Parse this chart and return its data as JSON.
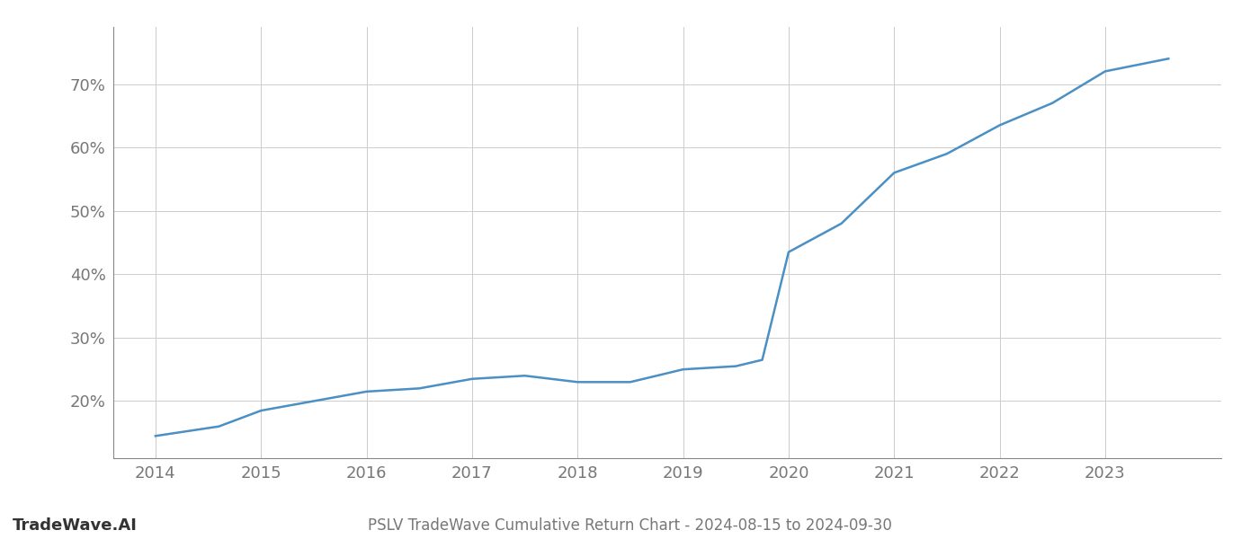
{
  "x_years": [
    2014,
    2014.6,
    2015,
    2015.5,
    2016,
    2016.5,
    2017,
    2017.5,
    2018,
    2018.5,
    2019,
    2019.5,
    2019.75,
    2020,
    2020.5,
    2021,
    2021.5,
    2022,
    2022.5,
    2023,
    2023.6
  ],
  "y_values": [
    14.5,
    16.0,
    18.5,
    20.0,
    21.5,
    22.0,
    23.5,
    24.0,
    23.0,
    23.0,
    25.0,
    25.5,
    26.5,
    43.5,
    48.0,
    56.0,
    59.0,
    63.5,
    67.0,
    72.0,
    74.0
  ],
  "line_color": "#4a90c4",
  "line_width": 1.8,
  "grid_color": "#cccccc",
  "background_color": "#ffffff",
  "title": "PSLV TradeWave Cumulative Return Chart - 2024-08-15 to 2024-09-30",
  "watermark": "TradeWave.AI",
  "xlim": [
    2013.6,
    2024.1
  ],
  "ylim": [
    11,
    79
  ],
  "yticks": [
    20,
    30,
    40,
    50,
    60,
    70
  ],
  "xticks": [
    2014,
    2015,
    2016,
    2017,
    2018,
    2019,
    2020,
    2021,
    2022,
    2023
  ],
  "title_fontsize": 12,
  "tick_fontsize": 13,
  "watermark_fontsize": 13
}
